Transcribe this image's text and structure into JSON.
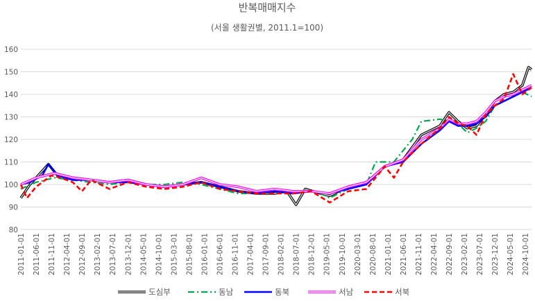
{
  "chart_data": {
    "type": "line",
    "title": "반복매매지수",
    "subtitle": "(서울 생활권별, 2011.1=100)",
    "ylim": [
      80,
      160
    ],
    "yticks": [
      80,
      90,
      100,
      110,
      120,
      130,
      140,
      150,
      160
    ],
    "grid": true,
    "legend_position": "bottom",
    "x_start": "2011-01",
    "x_end": "2024-12",
    "x_tick_labels": [
      "2011-01-01",
      "2011-06-01",
      "2011-11-01",
      "2012-04-01",
      "2012-09-01",
      "2013-02-01",
      "2013-07-01",
      "2013-12-01",
      "2014-05-01",
      "2014-10-01",
      "2015-03-01",
      "2015-08-01",
      "2016-01-01",
      "2016-06-01",
      "2016-11-01",
      "2017-04-01",
      "2017-09-01",
      "2018-02-01",
      "2018-07-01",
      "2018-12-01",
      "2019-05-01",
      "2019-10-01",
      "2020-03-01",
      "2020-08-01",
      "2021-01-01",
      "2021-06-01",
      "2021-11-01",
      "2022-04-01",
      "2022-09-01",
      "2023-02-01",
      "2023-07-01",
      "2023-12-01",
      "2024-05-01",
      "2024-10-01"
    ],
    "series": [
      {
        "name": "도심부",
        "color": "#000000",
        "style": "double",
        "values": [
          [
            "2011-01",
            94
          ],
          [
            "2011-04",
            100
          ],
          [
            "2011-08",
            106
          ],
          [
            "2011-10",
            109
          ],
          [
            "2012-01",
            104
          ],
          [
            "2012-06",
            103
          ],
          [
            "2012-12",
            102
          ],
          [
            "2013-06",
            101
          ],
          [
            "2013-12",
            102
          ],
          [
            "2014-06",
            100
          ],
          [
            "2014-12",
            99
          ],
          [
            "2015-06",
            100
          ],
          [
            "2015-12",
            101
          ],
          [
            "2016-06",
            99
          ],
          [
            "2016-12",
            97
          ],
          [
            "2017-06",
            96
          ],
          [
            "2017-12",
            96
          ],
          [
            "2018-04",
            97
          ],
          [
            "2018-07",
            91
          ],
          [
            "2018-10",
            98
          ],
          [
            "2019-03",
            96
          ],
          [
            "2019-06",
            95
          ],
          [
            "2019-12",
            99
          ],
          [
            "2020-06",
            101
          ],
          [
            "2020-12",
            108
          ],
          [
            "2021-06",
            111
          ],
          [
            "2021-12",
            122
          ],
          [
            "2022-06",
            126
          ],
          [
            "2022-09",
            132
          ],
          [
            "2022-12",
            128
          ],
          [
            "2023-03",
            125
          ],
          [
            "2023-06",
            126
          ],
          [
            "2023-09",
            131
          ],
          [
            "2023-12",
            137
          ],
          [
            "2024-03",
            140
          ],
          [
            "2024-06",
            141
          ],
          [
            "2024-09",
            144
          ],
          [
            "2024-11",
            152
          ],
          [
            "2024-12",
            151
          ]
        ]
      },
      {
        "name": "동남",
        "color": "#00a550",
        "style": "dashdot",
        "values": [
          [
            "2011-01",
            98
          ],
          [
            "2011-06",
            101
          ],
          [
            "2011-12",
            103
          ],
          [
            "2012-06",
            102
          ],
          [
            "2012-12",
            101
          ],
          [
            "2013-06",
            100
          ],
          [
            "2013-12",
            101
          ],
          [
            "2014-06",
            100
          ],
          [
            "2014-12",
            100
          ],
          [
            "2015-06",
            101
          ],
          [
            "2015-12",
            100
          ],
          [
            "2016-06",
            98
          ],
          [
            "2016-12",
            96
          ],
          [
            "2017-06",
            96
          ],
          [
            "2017-12",
            96
          ],
          [
            "2018-06",
            97
          ],
          [
            "2018-12",
            97
          ],
          [
            "2019-03",
            96
          ],
          [
            "2019-06",
            94
          ],
          [
            "2019-12",
            98
          ],
          [
            "2020-06",
            100
          ],
          [
            "2020-09",
            110
          ],
          [
            "2021-03",
            110
          ],
          [
            "2021-09",
            120
          ],
          [
            "2021-12",
            128
          ],
          [
            "2022-06",
            129
          ],
          [
            "2022-12",
            127
          ],
          [
            "2023-03",
            123
          ],
          [
            "2023-06",
            125
          ],
          [
            "2023-09",
            128
          ],
          [
            "2023-12",
            135
          ],
          [
            "2024-06",
            139
          ],
          [
            "2024-09",
            141
          ],
          [
            "2024-12",
            139
          ]
        ]
      },
      {
        "name": "동북",
        "color": "#0000ff",
        "style": "thick",
        "values": [
          [
            "2011-01",
            100
          ],
          [
            "2011-04",
            101
          ],
          [
            "2011-08",
            104
          ],
          [
            "2011-10",
            109
          ],
          [
            "2012-01",
            104
          ],
          [
            "2012-06",
            102
          ],
          [
            "2012-12",
            102
          ],
          [
            "2013-06",
            101
          ],
          [
            "2013-12",
            101
          ],
          [
            "2014-06",
            100
          ],
          [
            "2014-12",
            99
          ],
          [
            "2015-06",
            100
          ],
          [
            "2015-12",
            101
          ],
          [
            "2016-06",
            99
          ],
          [
            "2016-12",
            97
          ],
          [
            "2017-06",
            96
          ],
          [
            "2017-12",
            97
          ],
          [
            "2018-06",
            96
          ],
          [
            "2018-12",
            97
          ],
          [
            "2019-06",
            96
          ],
          [
            "2019-12",
            98
          ],
          [
            "2020-06",
            100
          ],
          [
            "2020-12",
            108
          ],
          [
            "2021-06",
            110
          ],
          [
            "2021-12",
            118
          ],
          [
            "2022-06",
            124
          ],
          [
            "2022-09",
            128
          ],
          [
            "2022-12",
            126
          ],
          [
            "2023-03",
            126
          ],
          [
            "2023-06",
            127
          ],
          [
            "2023-09",
            130
          ],
          [
            "2023-12",
            135
          ],
          [
            "2024-03",
            137
          ],
          [
            "2024-06",
            139
          ],
          [
            "2024-09",
            141
          ],
          [
            "2024-12",
            143
          ]
        ]
      },
      {
        "name": "서남",
        "color": "#ff00ff",
        "style": "double",
        "values": [
          [
            "2011-01",
            100
          ],
          [
            "2011-06",
            103
          ],
          [
            "2011-12",
            105
          ],
          [
            "2012-06",
            103
          ],
          [
            "2012-12",
            102
          ],
          [
            "2013-06",
            101
          ],
          [
            "2013-12",
            102
          ],
          [
            "2014-06",
            100
          ],
          [
            "2014-12",
            99
          ],
          [
            "2015-06",
            100
          ],
          [
            "2015-12",
            103
          ],
          [
            "2016-06",
            100
          ],
          [
            "2016-12",
            99
          ],
          [
            "2017-06",
            97
          ],
          [
            "2017-12",
            98
          ],
          [
            "2018-06",
            97
          ],
          [
            "2018-12",
            97
          ],
          [
            "2019-06",
            96
          ],
          [
            "2019-12",
            99
          ],
          [
            "2020-06",
            101
          ],
          [
            "2020-12",
            108
          ],
          [
            "2021-06",
            111
          ],
          [
            "2021-12",
            120
          ],
          [
            "2022-06",
            125
          ],
          [
            "2022-09",
            129
          ],
          [
            "2022-12",
            127
          ],
          [
            "2023-03",
            127
          ],
          [
            "2023-06",
            128
          ],
          [
            "2023-09",
            132
          ],
          [
            "2023-12",
            137
          ],
          [
            "2024-03",
            139
          ],
          [
            "2024-06",
            140
          ],
          [
            "2024-09",
            142
          ],
          [
            "2024-12",
            144
          ]
        ]
      },
      {
        "name": "서북",
        "color": "#ff0000",
        "style": "dash",
        "values": [
          [
            "2011-01",
            100
          ],
          [
            "2011-03",
            94
          ],
          [
            "2011-06",
            99
          ],
          [
            "2011-11",
            104
          ],
          [
            "2012-02",
            103
          ],
          [
            "2012-06",
            101
          ],
          [
            "2012-09",
            97
          ],
          [
            "2012-12",
            102
          ],
          [
            "2013-06",
            98
          ],
          [
            "2013-12",
            101
          ],
          [
            "2014-06",
            99
          ],
          [
            "2014-12",
            98
          ],
          [
            "2015-06",
            99
          ],
          [
            "2015-12",
            101
          ],
          [
            "2016-06",
            98
          ],
          [
            "2016-12",
            97
          ],
          [
            "2017-06",
            96
          ],
          [
            "2017-12",
            96
          ],
          [
            "2018-06",
            96
          ],
          [
            "2018-12",
            97
          ],
          [
            "2019-06",
            92
          ],
          [
            "2019-12",
            97
          ],
          [
            "2020-06",
            98
          ],
          [
            "2020-12",
            108
          ],
          [
            "2021-03",
            103
          ],
          [
            "2021-06",
            110
          ],
          [
            "2021-12",
            118
          ],
          [
            "2022-06",
            125
          ],
          [
            "2022-09",
            130
          ],
          [
            "2022-12",
            127
          ],
          [
            "2023-03",
            126
          ],
          [
            "2023-06",
            122
          ],
          [
            "2023-09",
            131
          ],
          [
            "2023-12",
            135
          ],
          [
            "2024-03",
            138
          ],
          [
            "2024-06",
            149
          ],
          [
            "2024-09",
            140
          ],
          [
            "2024-12",
            143
          ]
        ]
      }
    ]
  }
}
